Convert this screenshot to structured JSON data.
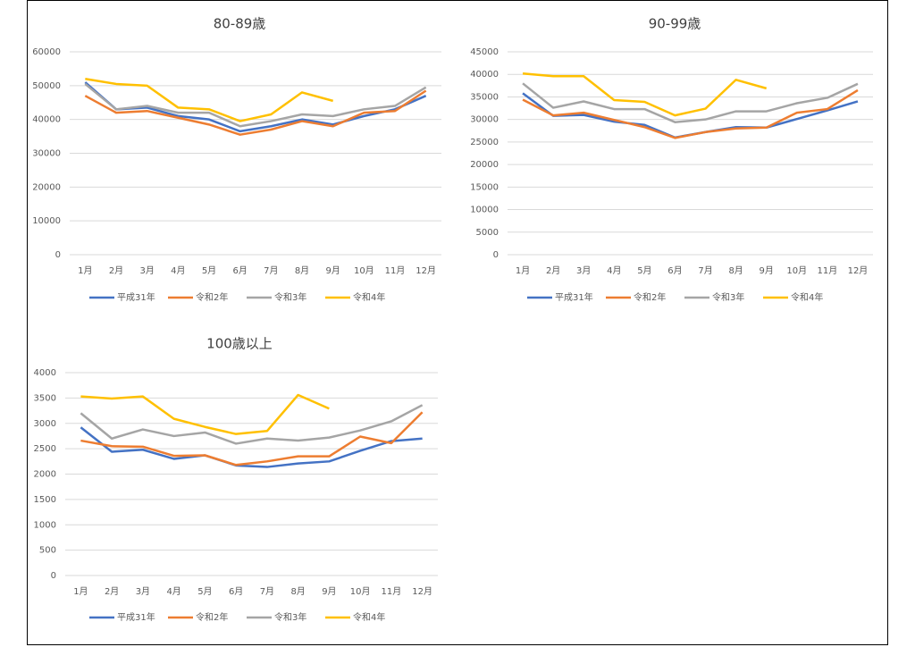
{
  "chart_data": [
    {
      "type": "line",
      "title": "80-89歳",
      "categories": [
        "1月",
        "2月",
        "3月",
        "4月",
        "5月",
        "6月",
        "7月",
        "8月",
        "9月",
        "10月",
        "11月",
        "12月"
      ],
      "ylim": [
        0,
        60000
      ],
      "yticks": [
        0,
        10000,
        20000,
        30000,
        40000,
        50000,
        60000
      ],
      "grid": true,
      "legend": "bottom",
      "series": [
        {
          "name": "平成31年",
          "color": "#4472c4",
          "values": [
            51000,
            43000,
            43500,
            41000,
            40000,
            36500,
            38000,
            40000,
            38500,
            41000,
            43000,
            47000
          ]
        },
        {
          "name": "令和2年",
          "color": "#ed7d31",
          "values": [
            47000,
            42000,
            42500,
            40500,
            38500,
            35500,
            37000,
            39500,
            38000,
            42000,
            42500,
            48500
          ]
        },
        {
          "name": "令和3年",
          "color": "#a5a5a5",
          "values": [
            50500,
            43000,
            44000,
            42000,
            42000,
            38000,
            39500,
            41500,
            41000,
            43000,
            44000,
            49500
          ]
        },
        {
          "name": "令和4年",
          "color": "#ffc000",
          "values": [
            52000,
            50500,
            50000,
            43500,
            43000,
            39500,
            41500,
            48000,
            45500,
            null,
            null,
            null
          ]
        }
      ]
    },
    {
      "type": "line",
      "title": "90-99歳",
      "categories": [
        "1月",
        "2月",
        "3月",
        "4月",
        "5月",
        "6月",
        "7月",
        "8月",
        "9月",
        "10月",
        "11月",
        "12月"
      ],
      "ylim": [
        0,
        45000
      ],
      "yticks": [
        0,
        5000,
        10000,
        15000,
        20000,
        25000,
        30000,
        35000,
        40000,
        45000
      ],
      "grid": true,
      "legend": "bottom",
      "series": [
        {
          "name": "平成31年",
          "color": "#4472c4",
          "values": [
            35800,
            30800,
            31000,
            29500,
            28800,
            26000,
            27200,
            28300,
            28200,
            30100,
            32000,
            34000
          ]
        },
        {
          "name": "令和2年",
          "color": "#ed7d31",
          "values": [
            34400,
            30900,
            31500,
            29900,
            28300,
            25900,
            27200,
            28000,
            28200,
            31500,
            32300,
            36500
          ]
        },
        {
          "name": "令和3年",
          "color": "#a5a5a5",
          "values": [
            38000,
            32600,
            34000,
            32300,
            32300,
            29400,
            30000,
            31800,
            31800,
            33600,
            34800,
            37900
          ]
        },
        {
          "name": "令和4年",
          "color": "#ffc000",
          "values": [
            40200,
            39600,
            39600,
            34300,
            33900,
            30900,
            32400,
            38800,
            36900,
            null,
            null,
            null
          ]
        }
      ]
    },
    {
      "type": "line",
      "title": "100歳以上",
      "categories": [
        "1月",
        "2月",
        "3月",
        "4月",
        "5月",
        "6月",
        "7月",
        "8月",
        "9月",
        "10月",
        "11月",
        "12月"
      ],
      "ylim": [
        0,
        4000
      ],
      "yticks": [
        0,
        500,
        1000,
        1500,
        2000,
        2500,
        3000,
        3500,
        4000
      ],
      "grid": true,
      "legend": "bottom",
      "series": [
        {
          "name": "平成31年",
          "color": "#4472c4",
          "values": [
            2920,
            2440,
            2480,
            2300,
            2370,
            2170,
            2140,
            2210,
            2250,
            2460,
            2650,
            2700
          ]
        },
        {
          "name": "令和2年",
          "color": "#ed7d31",
          "values": [
            2660,
            2550,
            2540,
            2360,
            2370,
            2180,
            2250,
            2350,
            2350,
            2740,
            2610,
            3220
          ]
        },
        {
          "name": "令和3年",
          "color": "#a5a5a5",
          "values": [
            3200,
            2700,
            2880,
            2750,
            2820,
            2600,
            2700,
            2660,
            2720,
            2860,
            3040,
            3360
          ]
        },
        {
          "name": "令和4年",
          "color": "#ffc000",
          "values": [
            3530,
            3490,
            3530,
            3090,
            2930,
            2790,
            2850,
            3560,
            3290,
            null,
            null,
            null
          ]
        }
      ]
    }
  ]
}
